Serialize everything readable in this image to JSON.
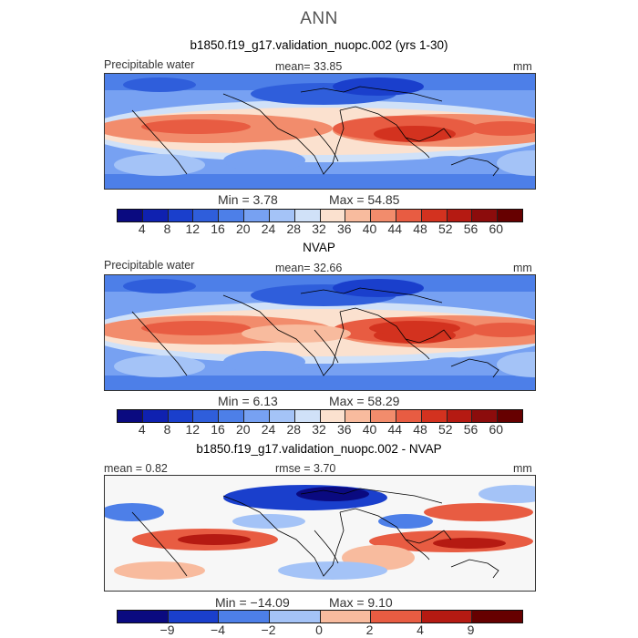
{
  "title": "ANN",
  "panels": [
    {
      "title": "b1850.f19_g17.validation_nuopc.002 (yrs 1-30)",
      "left_label": "Precipitable water",
      "mean_text": "mean=  33.85",
      "right_label": "mm",
      "min_text": "Min =   3.78",
      "max_text": "Max =  54.85",
      "colorbar_labels": [
        "4",
        "8",
        "12",
        "16",
        "20",
        "24",
        "28",
        "32",
        "36",
        "40",
        "44",
        "48",
        "52",
        "56",
        "60"
      ]
    },
    {
      "title": "NVAP",
      "left_label": "Precipitable water",
      "mean_text": "mean=  32.66",
      "right_label": "mm",
      "min_text": "Min =   6.13",
      "max_text": "Max =  58.29",
      "colorbar_labels": [
        "4",
        "8",
        "12",
        "16",
        "20",
        "24",
        "28",
        "32",
        "36",
        "40",
        "44",
        "48",
        "52",
        "56",
        "60"
      ]
    },
    {
      "title": "b1850.f19_g17.validation_nuopc.002 - NVAP",
      "left_label": "mean =   0.82",
      "mean_text": "rmse =   3.70",
      "right_label": "mm",
      "min_text": "Min = −14.09",
      "max_text": "Max =   9.10",
      "colorbar_labels": [
        "−9",
        "−4",
        "−2",
        "0",
        "2",
        "4",
        "9"
      ]
    }
  ],
  "colors": {
    "abs_scale": [
      "#0a0a80",
      "#0f21b0",
      "#1a3fcc",
      "#2f5edb",
      "#4d7fe8",
      "#77a1f2",
      "#a4c3f7",
      "#d0e1f8",
      "#fbe1cf",
      "#f8bb9e",
      "#f28c6c",
      "#e85c42",
      "#d3321f",
      "#b51a12",
      "#8c0c0c",
      "#660000"
    ],
    "diff_scale": [
      "#0a0a80",
      "#1a3fcc",
      "#4d7fe8",
      "#a4c3f7",
      "#f8bb9e",
      "#e85c42",
      "#b51a12",
      "#660000"
    ],
    "coastline": "#000000"
  }
}
